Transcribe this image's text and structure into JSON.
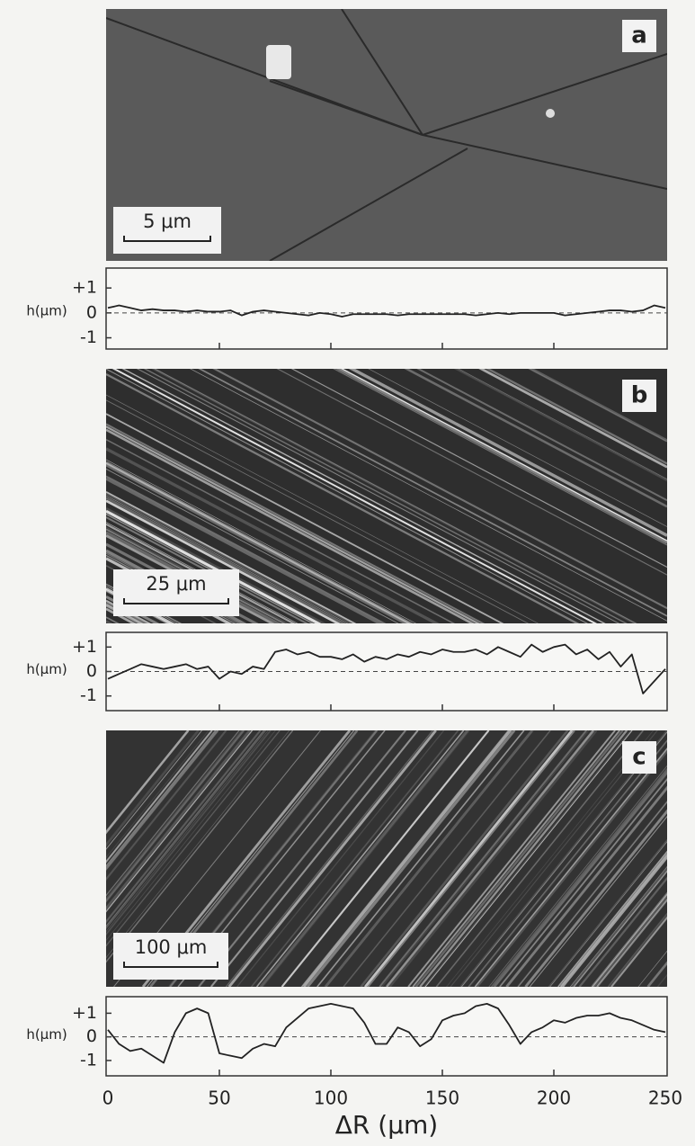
{
  "panels": [
    {
      "label": "a",
      "scale_bar": "5 μm"
    },
    {
      "label": "b",
      "scale_bar": "25 μm"
    },
    {
      "label": "c",
      "scale_bar": "100 μm"
    }
  ],
  "chart_data": [
    {
      "type": "line",
      "ylabel": "h(μm)",
      "x": [
        0,
        5,
        10,
        15,
        20,
        25,
        30,
        35,
        40,
        45,
        50,
        55,
        60,
        65,
        70,
        75,
        80,
        85,
        90,
        95,
        100,
        105,
        110,
        115,
        120,
        125,
        130,
        135,
        140,
        145,
        150,
        155,
        160,
        165,
        170,
        175,
        180,
        185,
        190,
        195,
        200,
        205,
        210,
        215,
        220,
        225,
        230,
        235,
        240,
        245,
        250
      ],
      "series": [
        {
          "color": "#222222",
          "values": [
            0.2,
            0.3,
            0.2,
            0.1,
            0.15,
            0.1,
            0.1,
            0.05,
            0.1,
            0.05,
            0.05,
            0.1,
            -0.1,
            0.05,
            0.1,
            0.05,
            0,
            -0.05,
            -0.1,
            0,
            -0.05,
            -0.15,
            -0.05,
            -0.05,
            -0.05,
            -0.05,
            -0.1,
            -0.05,
            -0.05,
            -0.05,
            -0.05,
            -0.05,
            -0.05,
            -0.1,
            -0.05,
            0,
            -0.05,
            0,
            0,
            0,
            0,
            -0.1,
            -0.05,
            0,
            0.05,
            0.1,
            0.1,
            0.05,
            0.1,
            0.3,
            0.2
          ]
        }
      ],
      "xlim": [
        0,
        250
      ],
      "ylim": [
        -1.45,
        1.8
      ],
      "yticks": [
        {
          "value": 1,
          "label": "+1"
        },
        0,
        -1
      ]
    },
    {
      "type": "line",
      "ylabel": "h(μm)",
      "x": [
        0,
        5,
        10,
        15,
        20,
        25,
        30,
        35,
        40,
        45,
        50,
        55,
        60,
        65,
        70,
        75,
        80,
        85,
        90,
        95,
        100,
        105,
        110,
        115,
        120,
        125,
        130,
        135,
        140,
        145,
        150,
        155,
        160,
        165,
        170,
        175,
        180,
        185,
        190,
        195,
        200,
        205,
        210,
        215,
        220,
        225,
        230,
        235,
        240,
        245,
        250
      ],
      "series": [
        {
          "color": "#222222",
          "values": [
            -0.3,
            -0.1,
            0.1,
            0.3,
            0.2,
            0.1,
            0.2,
            0.3,
            0.1,
            0.2,
            -0.3,
            0,
            -0.1,
            0.2,
            0.1,
            0.8,
            0.9,
            0.7,
            0.8,
            0.6,
            0.6,
            0.5,
            0.7,
            0.4,
            0.6,
            0.5,
            0.7,
            0.6,
            0.8,
            0.7,
            0.9,
            0.8,
            0.8,
            0.9,
            0.7,
            1.0,
            0.8,
            0.6,
            1.1,
            0.8,
            1.0,
            1.1,
            0.7,
            0.9,
            0.5,
            0.8,
            0.2,
            0.7,
            -0.9,
            -0.4,
            0.1
          ]
        }
      ],
      "xlim": [
        0,
        250
      ],
      "ylim": [
        -1.6,
        1.6
      ],
      "yticks": [
        {
          "value": 1,
          "label": "+1"
        },
        0,
        -1
      ]
    },
    {
      "type": "line",
      "ylabel": "h(μm)",
      "xlabel": "ΔR (μm)",
      "x": [
        0,
        5,
        10,
        15,
        20,
        25,
        30,
        35,
        40,
        45,
        50,
        55,
        60,
        65,
        70,
        75,
        80,
        85,
        90,
        95,
        100,
        105,
        110,
        115,
        120,
        125,
        130,
        135,
        140,
        145,
        150,
        155,
        160,
        165,
        170,
        175,
        180,
        185,
        190,
        195,
        200,
        205,
        210,
        215,
        220,
        225,
        230,
        235,
        240,
        245,
        250
      ],
      "series": [
        {
          "color": "#222222",
          "values": [
            0.3,
            -0.3,
            -0.6,
            -0.5,
            -0.8,
            -1.1,
            0.2,
            1.0,
            1.2,
            1.0,
            -0.7,
            -0.8,
            -0.9,
            -0.5,
            -0.3,
            -0.4,
            0.4,
            0.8,
            1.2,
            1.3,
            1.4,
            1.3,
            1.2,
            0.6,
            -0.3,
            -0.3,
            0.4,
            0.2,
            -0.4,
            -0.1,
            0.7,
            0.9,
            1.0,
            1.3,
            1.4,
            1.2,
            0.5,
            -0.3,
            0.2,
            0.4,
            0.7,
            0.6,
            0.8,
            0.9,
            0.9,
            1.0,
            0.8,
            0.7,
            0.5,
            0.3,
            0.2
          ]
        }
      ],
      "xlim": [
        0,
        250
      ],
      "ylim": [
        -1.65,
        1.7
      ],
      "xticks": [
        0,
        50,
        100,
        150,
        200,
        250
      ],
      "yticks": [
        {
          "value": 1,
          "label": "+1"
        },
        0,
        -1
      ]
    }
  ]
}
